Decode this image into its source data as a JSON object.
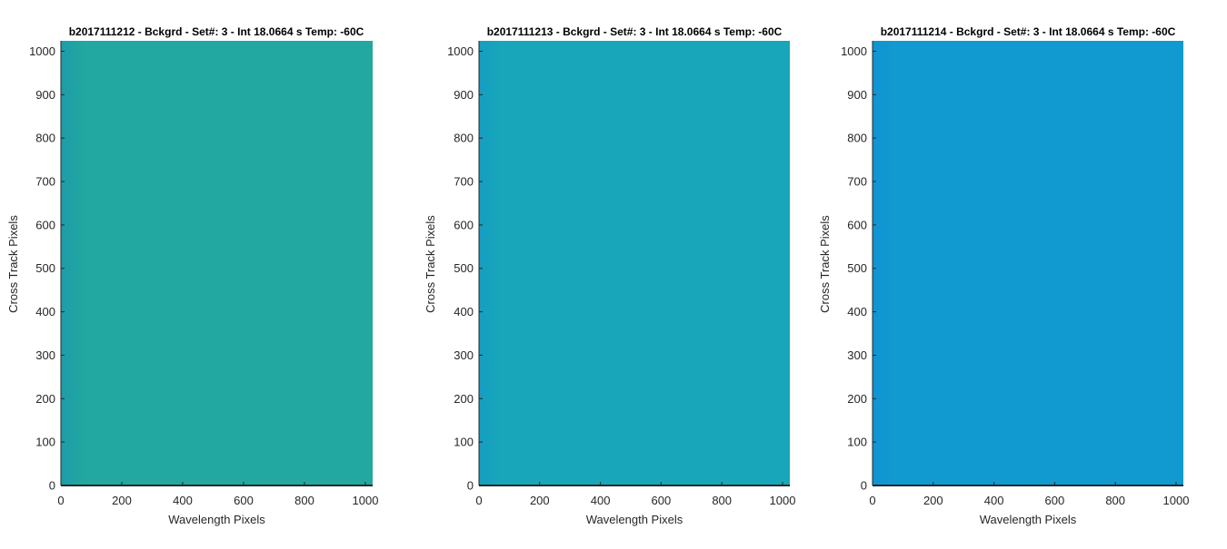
{
  "chart_data": [
    {
      "type": "heatmap",
      "title": "b2017111212 - Bckgrd - Set#: 3 - Int 18.0664 s Temp: -60C",
      "xlabel": "Wavelength Pixels",
      "ylabel": "Cross Track Pixels",
      "xlim": [
        0,
        1024
      ],
      "ylim": [
        0,
        1024
      ],
      "xticks": [
        0,
        200,
        400,
        600,
        800,
        1000
      ],
      "yticks": [
        0,
        100,
        200,
        300,
        400,
        500,
        600,
        700,
        800,
        900,
        1000
      ],
      "colors": {
        "fill": "#22a8a0",
        "noise": "#5cc07a",
        "edge": "#1a93b0"
      }
    },
    {
      "type": "heatmap",
      "title": "b2017111213 - Bckgrd - Set#: 3 - Int 18.0664 s Temp: -60C",
      "xlabel": "Wavelength Pixels",
      "ylabel": "Cross Track Pixels",
      "xlim": [
        0,
        1024
      ],
      "ylim": [
        0,
        1024
      ],
      "xticks": [
        0,
        200,
        400,
        600,
        800,
        1000
      ],
      "yticks": [
        0,
        100,
        200,
        300,
        400,
        500,
        600,
        700,
        800,
        900,
        1000
      ],
      "colors": {
        "fill": "#18a7ba",
        "noise": "#2fb5a8",
        "edge": "#1397c8"
      }
    },
    {
      "type": "heatmap",
      "title": "b2017111214 - Bckgrd - Set#: 3 - Int 18.0664 s Temp: -60C",
      "xlabel": "Wavelength Pixels",
      "ylabel": "Cross Track Pixels",
      "xlim": [
        0,
        1024
      ],
      "ylim": [
        0,
        1024
      ],
      "xticks": [
        0,
        200,
        400,
        600,
        800,
        1000
      ],
      "yticks": [
        0,
        100,
        200,
        300,
        400,
        500,
        600,
        700,
        800,
        900,
        1000
      ],
      "colors": {
        "fill": "#119ad0",
        "noise": "#22a6c6",
        "edge": "#0f8fd4"
      }
    }
  ]
}
